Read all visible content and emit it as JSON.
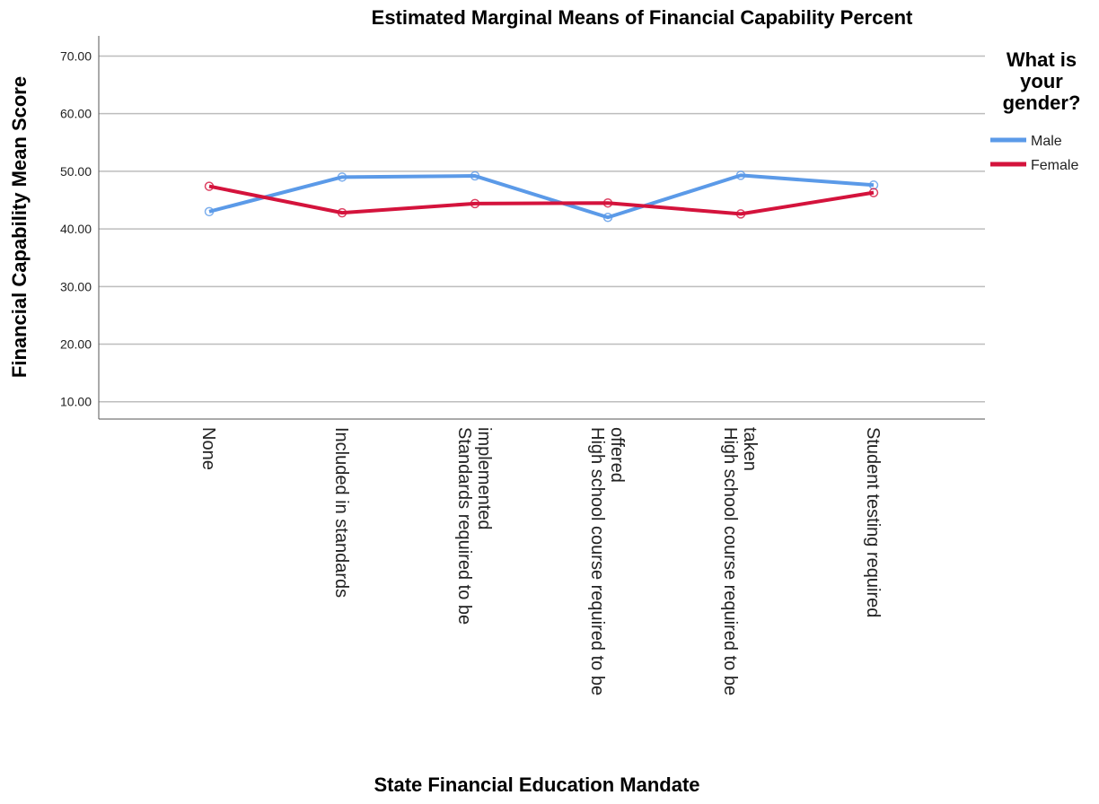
{
  "chart_data": {
    "type": "line",
    "title": "Estimated Marginal Means of Financial Capability Percent",
    "xlabel": "State Financial Education Mandate",
    "ylabel": "Financial Capability Mean Score",
    "categories": [
      [
        "None"
      ],
      [
        "Included in standards"
      ],
      [
        "Standards required to be",
        "implemented"
      ],
      [
        "High school course required to be",
        "offered"
      ],
      [
        "High school course required to be",
        "taken"
      ],
      [
        "Student testing required"
      ]
    ],
    "yticks": [
      "10.00",
      "20.00",
      "30.00",
      "40.00",
      "50.00",
      "60.00",
      "70.00"
    ],
    "ylim": [
      7,
      73.5
    ],
    "grid": true,
    "legend": {
      "title_lines": [
        "What is",
        "your",
        "gender?"
      ],
      "placement": "right"
    },
    "series": [
      {
        "name": "Male",
        "color": "#5b9ae8",
        "values": [
          43.0,
          49.0,
          49.2,
          42.0,
          49.3,
          47.6
        ]
      },
      {
        "name": "Female",
        "color": "#d4133c",
        "values": [
          47.4,
          42.8,
          44.4,
          44.5,
          42.6,
          46.3
        ]
      }
    ]
  }
}
